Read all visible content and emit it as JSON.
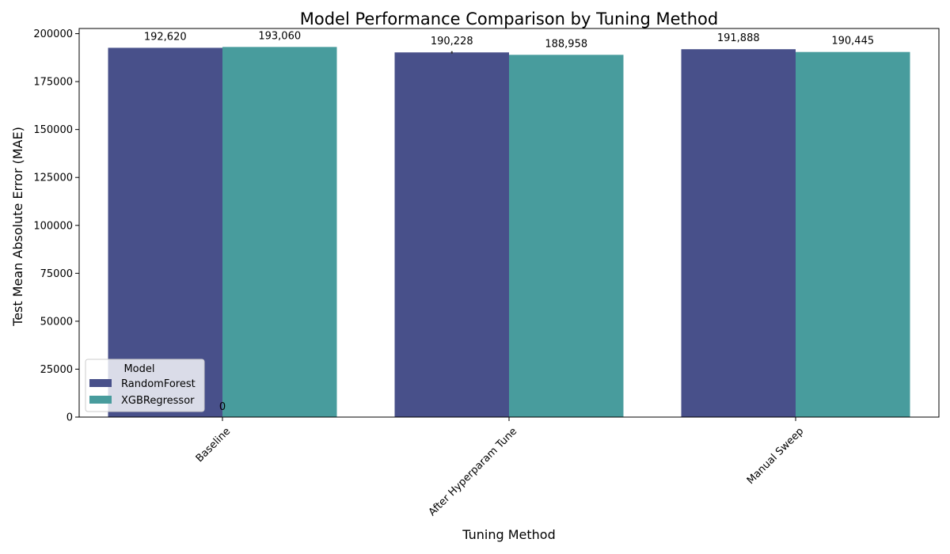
{
  "chart_data": {
    "type": "bar",
    "title": "Model Performance Comparison by Tuning Method",
    "xlabel": "Tuning Method",
    "ylabel": "Test Mean Absolute Error (MAE)",
    "categories": [
      "Baseline",
      "After Hyperparam Tune",
      "Manual Sweep"
    ],
    "series": [
      {
        "name": "RandomForest",
        "values": [
          192620,
          190228,
          191888
        ],
        "labels": [
          "192,620",
          "190,228",
          "191,888"
        ],
        "color": "#48508a"
      },
      {
        "name": "XGBRegressor",
        "values": [
          193060,
          188958,
          190445
        ],
        "labels": [
          "193,060",
          "188,958",
          "190,445"
        ],
        "color": "#489c9d"
      }
    ],
    "ylim": [
      0,
      200000
    ],
    "yticks": [
      0,
      25000,
      50000,
      75000,
      100000,
      125000,
      150000,
      175000,
      200000
    ],
    "yticklabels": [
      "0",
      "25000",
      "50000",
      "75000",
      "100000",
      "125000",
      "150000",
      "175000",
      "200000"
    ],
    "legend": {
      "title": "Model",
      "placement": "lower-left"
    },
    "annotations": [
      {
        "text": "0",
        "category": "Baseline",
        "value": 0
      }
    ],
    "grid": false,
    "x_tick_rotation": 45
  }
}
